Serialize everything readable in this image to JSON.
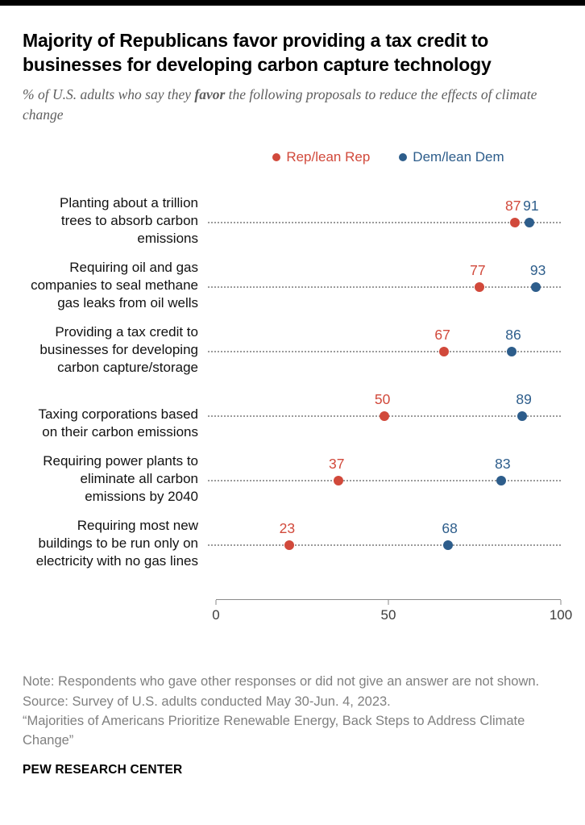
{
  "header": {
    "title": "Majority of Republicans favor providing a tax credit to businesses for developing carbon capture technology",
    "subtitle_prefix": "% of U.S. adults who say they ",
    "subtitle_bold": "favor",
    "subtitle_suffix": " the following proposals to reduce the effects of climate change"
  },
  "legend": {
    "rep_label": "Rep/lean Rep",
    "dem_label": "Dem/lean Dem"
  },
  "colors": {
    "rep": "#d1493b",
    "dem": "#2d5d8b",
    "leader_line": "#9b9b9b"
  },
  "chart_data": {
    "type": "scatter",
    "title": "Majority of Republicans favor providing a tax credit to businesses for developing carbon capture technology",
    "x_axis": {
      "min": 0,
      "max": 100,
      "ticks": [
        0,
        50,
        100
      ]
    },
    "series_names": [
      "Rep/lean Rep",
      "Dem/lean Dem"
    ],
    "rows": [
      {
        "label_lines": [
          "Planting about a trillion",
          "trees to absorb carbon",
          "emissions"
        ],
        "rep": 87,
        "dem": 91
      },
      {
        "label_lines": [
          "Requiring oil and gas",
          "companies to seal methane",
          "gas leaks from oil wells"
        ],
        "rep": 77,
        "dem": 93
      },
      {
        "label_lines": [
          "Providing a tax credit to",
          "businesses for developing",
          "carbon capture/storage"
        ],
        "rep": 67,
        "dem": 86
      },
      {
        "label_lines": [
          "Taxing corporations based",
          "on their carbon emissions"
        ],
        "rep": 50,
        "dem": 89
      },
      {
        "label_lines": [
          "Requiring power plants to",
          "eliminate all carbon",
          "emissions by 2040"
        ],
        "rep": 37,
        "dem": 83
      },
      {
        "label_lines": [
          "Requiring most new",
          "buildings to be run only on",
          "electricity with no gas lines"
        ],
        "rep": 23,
        "dem": 68
      }
    ]
  },
  "footer": {
    "note": "Note: Respondents who gave other responses or did not give an answer are not shown.",
    "source": "Source: Survey of U.S. adults conducted May 30-Jun. 4, 2023.",
    "report": "“Majorities of Americans Prioritize Renewable Energy, Back Steps to Address Climate Change”",
    "brand": "PEW RESEARCH CENTER"
  }
}
